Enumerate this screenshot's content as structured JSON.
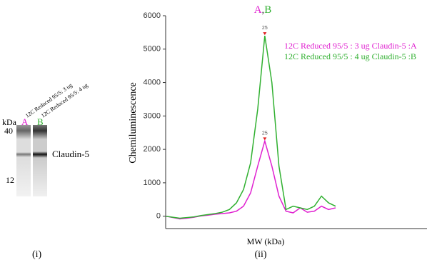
{
  "gel": {
    "lane_labels": [
      "12C Reduced 95/5: 3 ug",
      "12C Reduced 95/5: 4 ug"
    ],
    "lanes": [
      "A",
      "B"
    ],
    "unit": "kDa",
    "markers": [
      "40",
      "12"
    ],
    "band_label": "Claudin-5",
    "caption": "(i)"
  },
  "chart_data": {
    "type": "line",
    "title_parts": [
      "A",
      ",",
      "B"
    ],
    "title_colors": [
      "#e020d0",
      "#444444",
      "#30b030"
    ],
    "y_label": "Chemiluminescence",
    "x_label": "MW (kDa)",
    "caption": "(ii)",
    "ylim": [
      -370,
      6000
    ],
    "yticks": [
      0,
      1000,
      2000,
      3000,
      4000,
      5000,
      6000
    ],
    "series": [
      {
        "name": "12C Reduced 95/5 : 3 ug Claudin-5 :A",
        "color": "#e020d0",
        "peak_label": "25",
        "values": [
          0,
          -40,
          -80,
          -60,
          -30,
          10,
          30,
          60,
          80,
          100,
          150,
          300,
          700,
          1500,
          2250,
          1500,
          600,
          150,
          100,
          250,
          120,
          150,
          300,
          200,
          250
        ]
      },
      {
        "name": "12C Reduced 95/5 : 4 ug Claudin-5 :B",
        "color": "#30b030",
        "peak_label": "25",
        "values": [
          0,
          -30,
          -60,
          -40,
          -20,
          20,
          50,
          80,
          120,
          200,
          400,
          800,
          1600,
          3200,
          5400,
          4000,
          1500,
          200,
          300,
          250,
          200,
          300,
          600,
          400,
          300
        ]
      }
    ]
  }
}
